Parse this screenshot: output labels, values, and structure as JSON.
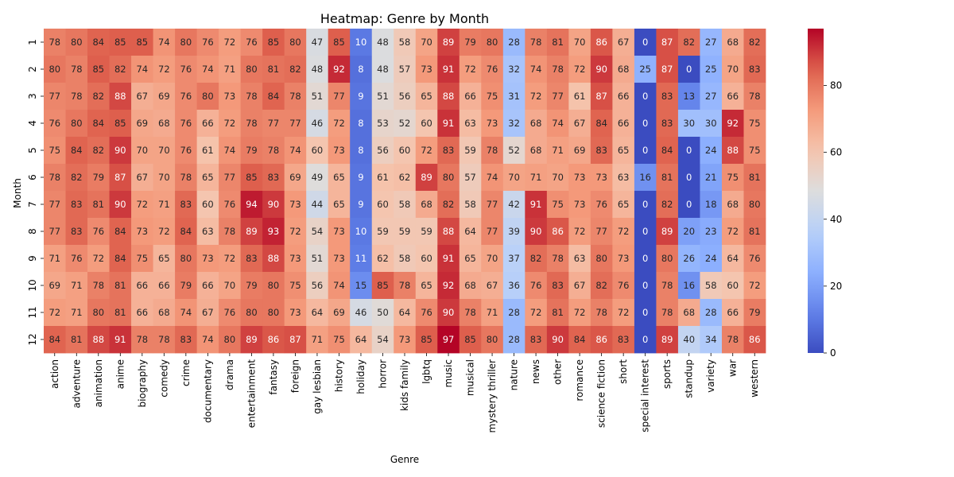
{
  "chart_data": {
    "type": "heatmap",
    "title": "Heatmap: Genre by Month",
    "xlabel": "Genre",
    "ylabel": "Month",
    "x_categories": [
      "action",
      "adventure",
      "animation",
      "anime",
      "biography",
      "comedy",
      "crime",
      "documentary",
      "drama",
      "entertainment",
      "fantasy",
      "foreign",
      "gay  lesbian",
      "history",
      "holiday",
      "horror",
      "kids  family",
      "lgbtq",
      "music",
      "musical",
      "mystery  thriller",
      "nature",
      "news",
      "other",
      "romance",
      "science fiction",
      "short",
      "special interest",
      "sports",
      "standup",
      "variety",
      "war",
      "western"
    ],
    "y_categories": [
      "1",
      "2",
      "3",
      "4",
      "5",
      "6",
      "7",
      "8",
      "9",
      "10",
      "11",
      "12"
    ],
    "values": [
      [
        78,
        80,
        84,
        85,
        85,
        74,
        80,
        76,
        72,
        76,
        85,
        80,
        47,
        85,
        10,
        48,
        58,
        70,
        89,
        79,
        80,
        28,
        78,
        81,
        70,
        86,
        67,
        0,
        87,
        82,
        27,
        68,
        82
      ],
      [
        80,
        78,
        85,
        82,
        74,
        72,
        76,
        74,
        71,
        80,
        81,
        82,
        48,
        92,
        8,
        48,
        57,
        73,
        91,
        72,
        76,
        32,
        74,
        78,
        72,
        90,
        68,
        25,
        87,
        0,
        25,
        70,
        83
      ],
      [
        77,
        78,
        82,
        88,
        67,
        69,
        76,
        80,
        73,
        78,
        84,
        78,
        51,
        77,
        9,
        51,
        56,
        65,
        88,
        66,
        75,
        31,
        72,
        77,
        61,
        87,
        66,
        0,
        83,
        13,
        27,
        66,
        78
      ],
      [
        76,
        80,
        84,
        85,
        69,
        68,
        76,
        66,
        72,
        78,
        77,
        77,
        46,
        72,
        8,
        53,
        52,
        60,
        91,
        63,
        73,
        32,
        68,
        74,
        67,
        84,
        66,
        0,
        83,
        30,
        30,
        92,
        75
      ],
      [
        75,
        84,
        82,
        90,
        70,
        70,
        76,
        61,
        74,
        79,
        78,
        74,
        60,
        73,
        8,
        56,
        60,
        72,
        83,
        59,
        78,
        52,
        68,
        71,
        69,
        83,
        65,
        0,
        84,
        0,
        24,
        88,
        75
      ],
      [
        78,
        82,
        79,
        87,
        67,
        70,
        78,
        65,
        77,
        85,
        83,
        69,
        49,
        65,
        9,
        61,
        62,
        89,
        80,
        57,
        74,
        70,
        71,
        70,
        73,
        73,
        63,
        16,
        81,
        0,
        21,
        75,
        81
      ],
      [
        77,
        83,
        81,
        90,
        72,
        71,
        83,
        60,
        76,
        94,
        90,
        73,
        44,
        65,
        9,
        60,
        58,
        68,
        82,
        58,
        77,
        42,
        91,
        75,
        73,
        76,
        65,
        0,
        82,
        0,
        18,
        68,
        80
      ],
      [
        77,
        83,
        76,
        84,
        73,
        72,
        84,
        63,
        78,
        89,
        93,
        72,
        54,
        73,
        10,
        59,
        59,
        59,
        88,
        64,
        77,
        39,
        90,
        86,
        72,
        77,
        72,
        0,
        89,
        20,
        23,
        72,
        81
      ],
      [
        71,
        76,
        72,
        84,
        75,
        65,
        80,
        73,
        72,
        83,
        88,
        73,
        51,
        73,
        11,
        62,
        58,
        60,
        91,
        65,
        70,
        37,
        82,
        78,
        63,
        80,
        73,
        0,
        80,
        26,
        24,
        64,
        76
      ],
      [
        69,
        71,
        78,
        81,
        66,
        66,
        79,
        66,
        70,
        79,
        80,
        75,
        56,
        74,
        15,
        85,
        78,
        65,
        92,
        68,
        67,
        36,
        76,
        83,
        67,
        82,
        76,
        0,
        78,
        16,
        58,
        60,
        72
      ],
      [
        72,
        71,
        80,
        81,
        66,
        68,
        74,
        67,
        76,
        80,
        80,
        73,
        64,
        69,
        46,
        50,
        64,
        76,
        90,
        78,
        71,
        28,
        72,
        81,
        72,
        78,
        72,
        0,
        78,
        68,
        28,
        66,
        79
      ],
      [
        84,
        81,
        88,
        91,
        78,
        78,
        83,
        74,
        80,
        89,
        86,
        87,
        71,
        75,
        64,
        54,
        73,
        85,
        97,
        85,
        80,
        28,
        83,
        90,
        84,
        86,
        83,
        0,
        89,
        40,
        34,
        78,
        86
      ]
    ],
    "colormap": "coolwarm",
    "vmin": 0,
    "vmax": 97,
    "colorbar_ticks": [
      0,
      20,
      40,
      60,
      80
    ],
    "annotations": true,
    "legend": "colorbar-right"
  }
}
